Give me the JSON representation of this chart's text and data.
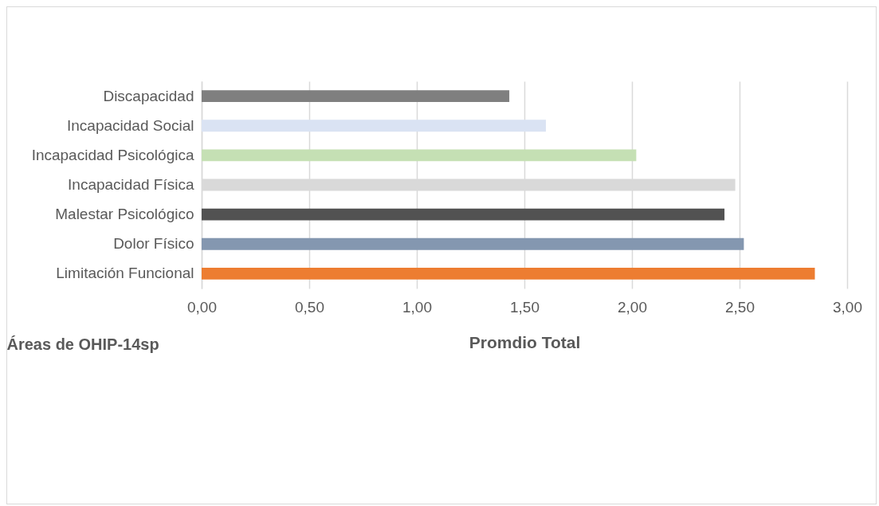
{
  "chart_data": {
    "type": "bar",
    "orientation": "horizontal",
    "xlabel": "Promdio Total",
    "ylabel": "Áreas de OHIP-14sp",
    "categories": [
      "Discapacidad",
      "Incapacidad Social",
      "Incapacidad Psicológica",
      "Incapacidad Física",
      "Malestar Psicológico",
      "Dolor Físico",
      "Limitación Funcional"
    ],
    "values": [
      1.43,
      1.6,
      2.02,
      2.48,
      2.43,
      2.52,
      2.85
    ],
    "colors": [
      "#7f7f7f",
      "#dae3f3",
      "#c5e0b4",
      "#d9d9d9",
      "#525252",
      "#8497b0",
      "#ed7d31"
    ],
    "xlim": [
      0,
      3
    ],
    "xticks": [
      {
        "value": 0,
        "label": "0,00"
      },
      {
        "value": 0.5,
        "label": "0,50"
      },
      {
        "value": 1,
        "label": "1,00"
      },
      {
        "value": 1.5,
        "label": "1,50"
      },
      {
        "value": 2,
        "label": "2,00"
      },
      {
        "value": 2.5,
        "label": "2,50"
      },
      {
        "value": 3,
        "label": "3,00"
      }
    ],
    "grid": "x",
    "legend": false
  }
}
